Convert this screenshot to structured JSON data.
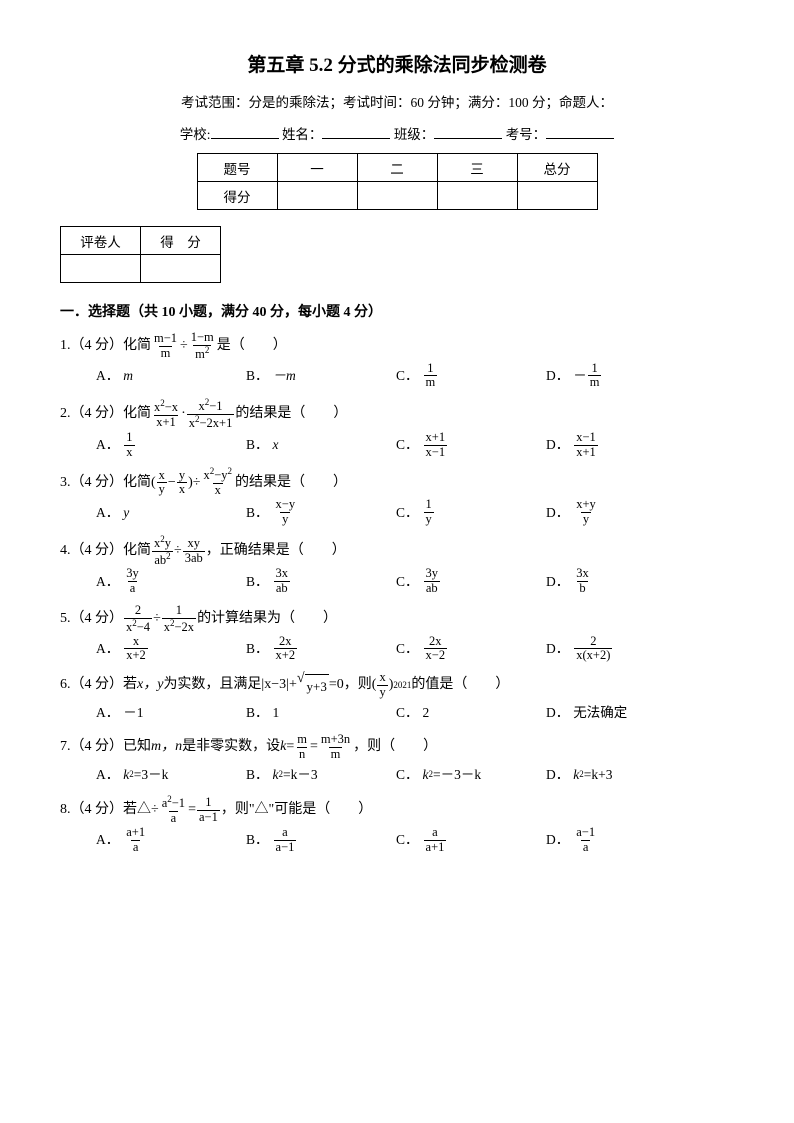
{
  "title": "第五章 5.2 分式的乘除法同步检测卷",
  "info": "考试范围：分是的乘除法；考试时间：60 分钟；满分：100 分；命题人：",
  "fill": {
    "school": "学校:",
    "name": "姓名：",
    "class": "班级：",
    "id": "考号："
  },
  "score_table": {
    "col_h": "题号",
    "col_s": "得分",
    "c1": "一",
    "c2": "二",
    "c3": "三",
    "c4": "总分"
  },
  "grader": {
    "c1": "评卷人",
    "c2": "得　分"
  },
  "section1": "一．选择题（共 10 小题，满分 40 分，每小题 4 分）",
  "q1": {
    "stem_pre": "1.（4 分）化简",
    "f1n": "m−1",
    "f1d": "m",
    "div": "÷",
    "f2n": "1−m",
    "f2d": "m",
    "f2d_sup": "2",
    "stem_post": "是（　　）",
    "A": "m",
    "B": "－m"
  },
  "q2": {
    "stem_pre": "2.（4 分）化简",
    "f1n_a": "x",
    "f1n_sup": "2",
    "f1n_b": "−x",
    "f1d": "x+1",
    "dot": "·",
    "f2n_a": "x",
    "f2n_sup": "2",
    "f2n_b": "−1",
    "f2d_a": "x",
    "f2d_sup": "2",
    "f2d_b": "−2x+1",
    "stem_post": "的结果是（　　）",
    "Bx": "x"
  },
  "q3": {
    "stem_pre": "3.（4 分）化简",
    "lp": "(",
    "rp": ")",
    "stem_post": "的结果是（　　）",
    "Ay": "y"
  },
  "q4": {
    "stem_pre": "4.（4 分）化简",
    "stem_post": "，正确结果是（　　）"
  },
  "q5": {
    "stem_pre": "5.（4 分）",
    "stem_post": "的计算结果为（　　）"
  },
  "q6": {
    "stem_pre": "6.（4 分）若 ",
    "xy": "x，y",
    "mid": " 为实数，且满足|x−3|+",
    "sq": "y+3",
    "eq": "=0，则 ",
    "lp": "(",
    "rp": ")",
    "exp": "2021",
    "post": "的值是（　　）",
    "A": "－1",
    "B": "1",
    "C": "2",
    "D": "无法确定"
  },
  "q7": {
    "stem_pre": "7.（4 分）已知 ",
    "mn": "m，n",
    "mid1": " 是非零实数，设 ",
    "k": "k",
    "eq": "=",
    "eq2": "=",
    "post": "，则（　　）",
    "A_pre": "k",
    "A_sup": "2",
    "A_post": "=3－k",
    "B_pre": "k",
    "B_sup": "2",
    "B_post": "=k－3",
    "C_pre": "k",
    "C_sup": "2",
    "C_post": "=－3－k",
    "D_pre": "k",
    "D_sup": "2",
    "D_post": "=k+3"
  },
  "q8": {
    "stem_pre": "8.（4 分）若△÷",
    "eq": "=",
    "post": "，则\"△\"可能是（　　）"
  }
}
